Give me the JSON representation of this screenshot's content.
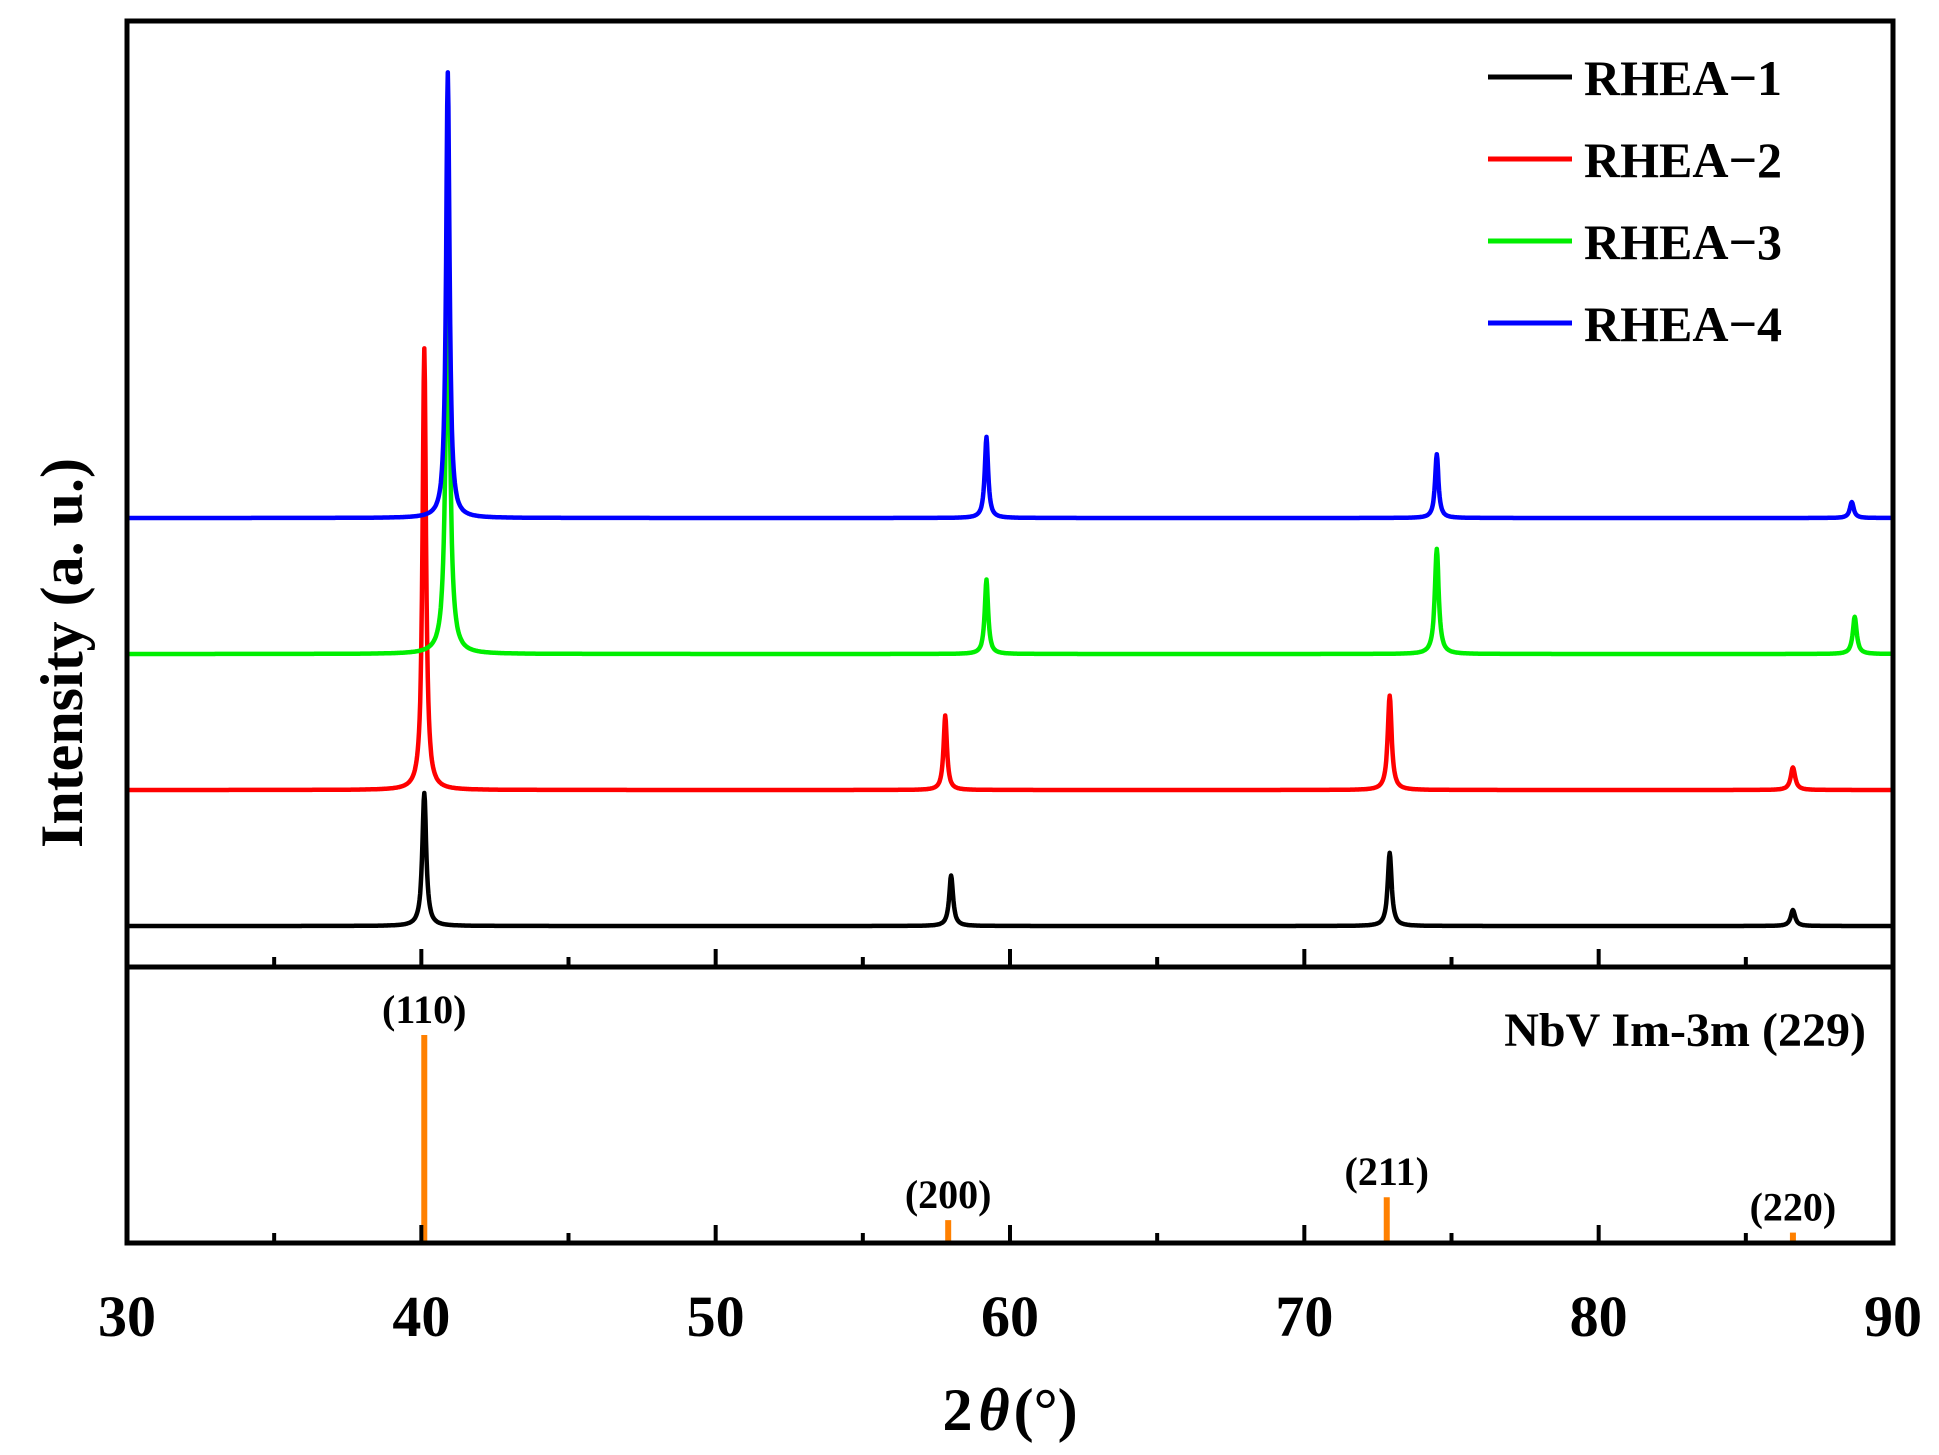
{
  "chart_data": {
    "type": "line",
    "xlabel_prefix": "2",
    "xlabel_symbol": "θ",
    "xlabel_unit": "(°)",
    "ylabel": "Intensity (a. u.)",
    "xlim": [
      30,
      90
    ],
    "xticks": [
      30,
      40,
      50,
      60,
      70,
      80,
      90
    ],
    "xminor": [
      35,
      45,
      55,
      65,
      75,
      85
    ],
    "legend": {
      "position": "top-right"
    },
    "series": [
      {
        "name": "RHEA−1",
        "color": "#000000",
        "baseline": 0,
        "peaks": [
          [
            40.1,
            1.0,
            0.08
          ],
          [
            58.0,
            0.38,
            0.08
          ],
          [
            72.9,
            0.55,
            0.08
          ],
          [
            86.6,
            0.12,
            0.09
          ]
        ]
      },
      {
        "name": "RHEA−2",
        "color": "#ff0000",
        "baseline": 1,
        "peaks": [
          [
            40.1,
            3.32,
            0.07
          ],
          [
            57.8,
            0.56,
            0.07
          ],
          [
            72.9,
            0.71,
            0.08
          ],
          [
            86.6,
            0.17,
            0.09
          ]
        ]
      },
      {
        "name": "RHEA−3",
        "color": "#00ee00",
        "baseline": 2,
        "peaks": [
          [
            40.9,
            2.85,
            0.09
          ],
          [
            59.2,
            0.56,
            0.07
          ],
          [
            74.5,
            0.79,
            0.08
          ],
          [
            88.7,
            0.28,
            0.08
          ]
        ]
      },
      {
        "name": "RHEA−4",
        "color": "#0000ff",
        "baseline": 3,
        "peaks": [
          [
            40.9,
            3.35,
            0.07
          ],
          [
            59.2,
            0.61,
            0.07
          ],
          [
            74.5,
            0.48,
            0.07
          ],
          [
            88.6,
            0.12,
            0.08
          ]
        ]
      }
    ],
    "reference": {
      "title": "NbV Im-3m (229)",
      "color": "#ff8000",
      "lines": [
        {
          "x": 40.1,
          "intensity": 100,
          "label": "(110)"
        },
        {
          "x": 57.9,
          "intensity": 11,
          "label": "(200)"
        },
        {
          "x": 72.8,
          "intensity": 22,
          "label": "(211)"
        },
        {
          "x": 86.6,
          "intensity": 5,
          "label": "(220)"
        }
      ]
    }
  }
}
